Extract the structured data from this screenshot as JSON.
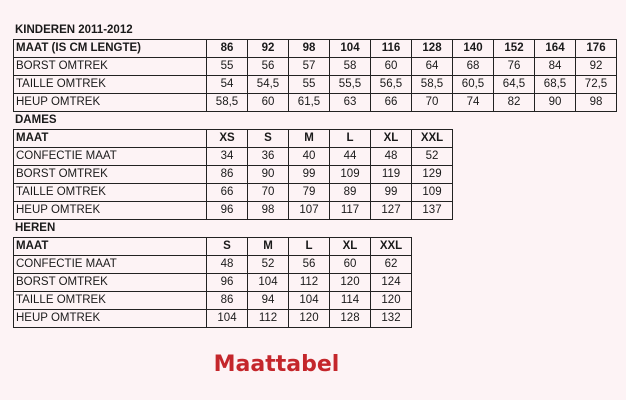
{
  "sections": [
    {
      "title": "KINDEREN 2011-2012",
      "header": [
        "MAAT (IS CM LENGTE)",
        "86",
        "92",
        "98",
        "104",
        "116",
        "128",
        "140",
        "152",
        "164",
        "176"
      ],
      "rows": [
        [
          "BORST OMTREK",
          "55",
          "56",
          "57",
          "58",
          "60",
          "64",
          "68",
          "76",
          "84",
          "92"
        ],
        [
          "TAILLE OMTREK",
          "54",
          "54,5",
          "55",
          "55,5",
          "56,5",
          "58,5",
          "60,5",
          "64,5",
          "68,5",
          "72,5"
        ],
        [
          "HEUP OMTREK",
          "58,5",
          "60",
          "61,5",
          "63",
          "66",
          "70",
          "74",
          "82",
          "90",
          "98"
        ]
      ]
    },
    {
      "title": "DAMES",
      "header": [
        "MAAT",
        "XS",
        "S",
        "M",
        "L",
        "XL",
        "XXL"
      ],
      "rows": [
        [
          "CONFECTIE MAAT",
          "34",
          "36",
          "40",
          "44",
          "48",
          "52"
        ],
        [
          "BORST OMTREK",
          "86",
          "90",
          "99",
          "109",
          "119",
          "129"
        ],
        [
          "TAILLE OMTREK",
          "66",
          "70",
          "79",
          "89",
          "99",
          "109"
        ],
        [
          "HEUP OMTREK",
          "96",
          "98",
          "107",
          "117",
          "127",
          "137"
        ]
      ]
    },
    {
      "title": "HEREN",
      "header": [
        "MAAT",
        "S",
        "M",
        "L",
        "XL",
        "XXL"
      ],
      "rows": [
        [
          "CONFECTIE MAAT",
          "48",
          "52",
          "56",
          "60",
          "62"
        ],
        [
          "BORST OMTREK",
          "96",
          "104",
          "112",
          "120",
          "124"
        ],
        [
          "TAILLE OMTREK",
          "86",
          "94",
          "104",
          "114",
          "120"
        ],
        [
          "HEUP OMTREK",
          "104",
          "112",
          "120",
          "128",
          "132"
        ]
      ]
    }
  ],
  "caption": "Maattabel",
  "colors": {
    "caption": "#c4262b",
    "background": "#fdf3f5"
  }
}
